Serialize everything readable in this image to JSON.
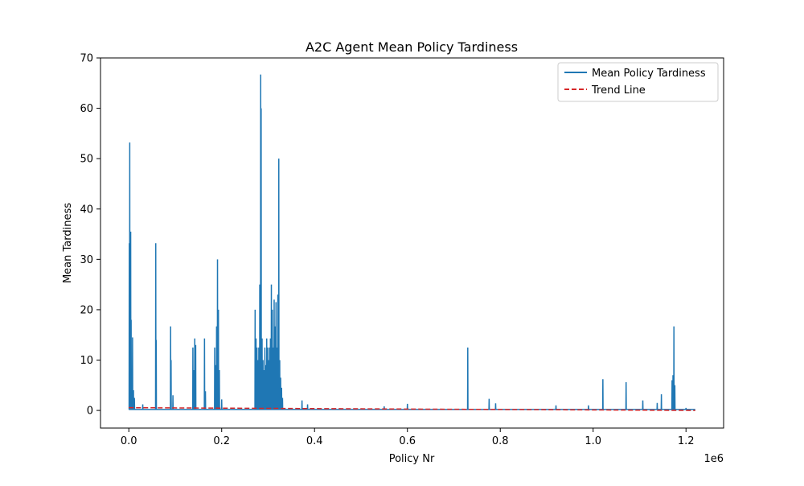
{
  "chart_data": {
    "type": "line",
    "title": "A2C Agent Mean Policy Tardiness",
    "xlabel": "Policy Nr",
    "ylabel": "Mean Tardiness",
    "x_offset_label": "1e6",
    "xlim": [
      -0.061,
      1.281
    ],
    "ylim": [
      -3.5,
      70
    ],
    "x_ticks": [
      0.0,
      0.2,
      0.4,
      0.6,
      0.8,
      1.0,
      1.2
    ],
    "x_tick_labels": [
      "0.0",
      "0.2",
      "0.4",
      "0.6",
      "0.8",
      "1.0",
      "1.2"
    ],
    "y_ticks": [
      0,
      10,
      20,
      30,
      40,
      50,
      60,
      70
    ],
    "y_tick_labels": [
      "0",
      "10",
      "20",
      "30",
      "40",
      "50",
      "60",
      "70"
    ],
    "grid": false,
    "legend_position": "upper right",
    "series": [
      {
        "name": "Mean Policy Tardiness",
        "color": "#1f77b4",
        "style": "solid",
        "baseline": 0.2,
        "spikes": [
          [
            0.001,
            33.2
          ],
          [
            0.002,
            53.2
          ],
          [
            0.004,
            35.5
          ],
          [
            0.005,
            18.0
          ],
          [
            0.006,
            6.0
          ],
          [
            0.008,
            14.5
          ],
          [
            0.01,
            4.0
          ],
          [
            0.012,
            2.5
          ],
          [
            0.03,
            1.2
          ],
          [
            0.058,
            33.2
          ],
          [
            0.059,
            14.0
          ],
          [
            0.09,
            16.7
          ],
          [
            0.091,
            10.0
          ],
          [
            0.095,
            3.0
          ],
          [
            0.138,
            12.5
          ],
          [
            0.14,
            8.0
          ],
          [
            0.142,
            14.3
          ],
          [
            0.144,
            13.0
          ],
          [
            0.163,
            14.3
          ],
          [
            0.165,
            3.8
          ],
          [
            0.185,
            12.5
          ],
          [
            0.187,
            9.0
          ],
          [
            0.189,
            16.7
          ],
          [
            0.191,
            30.0
          ],
          [
            0.193,
            20.0
          ],
          [
            0.195,
            8.0
          ],
          [
            0.2,
            2.2
          ],
          [
            0.272,
            20.0
          ],
          [
            0.274,
            14.3
          ],
          [
            0.276,
            12.5
          ],
          [
            0.278,
            10.0
          ],
          [
            0.28,
            12.5
          ],
          [
            0.282,
            25.0
          ],
          [
            0.284,
            66.7
          ],
          [
            0.285,
            60.0
          ],
          [
            0.287,
            14.3
          ],
          [
            0.289,
            10.0
          ],
          [
            0.291,
            8.0
          ],
          [
            0.293,
            12.5
          ],
          [
            0.295,
            9.0
          ],
          [
            0.297,
            14.3
          ],
          [
            0.299,
            12.5
          ],
          [
            0.301,
            10.0
          ],
          [
            0.303,
            12.5
          ],
          [
            0.305,
            14.3
          ],
          [
            0.307,
            25.0
          ],
          [
            0.309,
            20.0
          ],
          [
            0.311,
            12.5
          ],
          [
            0.313,
            22.0
          ],
          [
            0.315,
            16.7
          ],
          [
            0.317,
            21.5
          ],
          [
            0.319,
            12.5
          ],
          [
            0.321,
            23.0
          ],
          [
            0.323,
            50.0
          ],
          [
            0.325,
            10.0
          ],
          [
            0.327,
            6.5
          ],
          [
            0.329,
            4.5
          ],
          [
            0.331,
            2.5
          ],
          [
            0.373,
            2.0
          ],
          [
            0.385,
            1.2
          ],
          [
            0.55,
            0.8
          ],
          [
            0.6,
            1.3
          ],
          [
            0.73,
            12.5
          ],
          [
            0.776,
            2.3
          ],
          [
            0.79,
            1.4
          ],
          [
            0.92,
            1.0
          ],
          [
            0.99,
            1.0
          ],
          [
            1.021,
            6.2
          ],
          [
            1.071,
            5.6
          ],
          [
            1.107,
            2.0
          ],
          [
            1.138,
            1.5
          ],
          [
            1.147,
            3.2
          ],
          [
            1.17,
            6.0
          ],
          [
            1.172,
            7.0
          ],
          [
            1.174,
            16.7
          ],
          [
            1.176,
            5.0
          ],
          [
            1.2,
            0.5
          ]
        ]
      },
      {
        "name": "Trend Line",
        "color": "#d62728",
        "style": "dashed",
        "x": [
          0.0,
          1.22
        ],
        "y": [
          0.55,
          0.0
        ]
      }
    ]
  }
}
